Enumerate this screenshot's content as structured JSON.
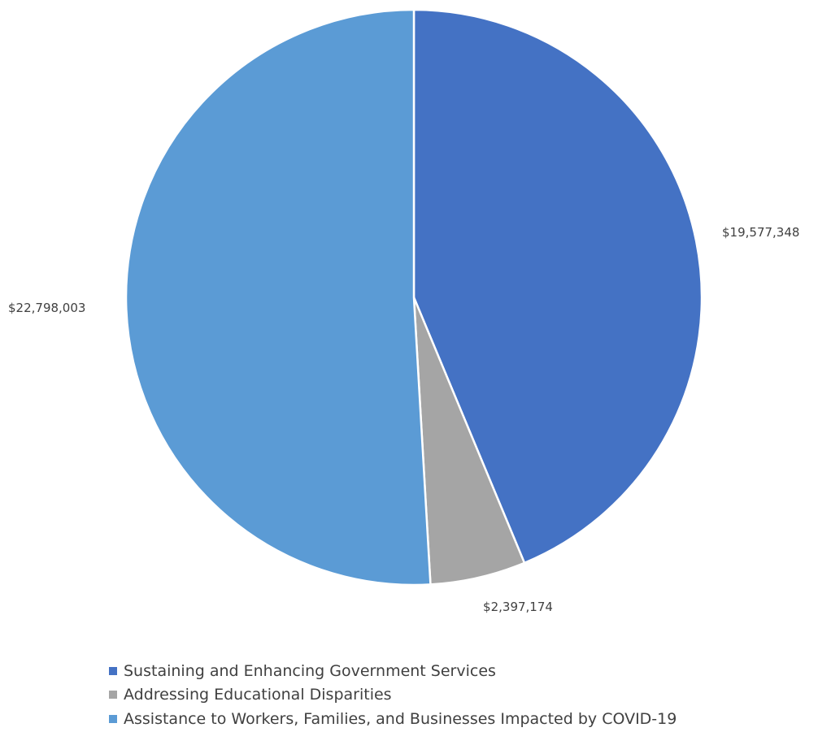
{
  "chart_data": {
    "type": "pie",
    "title": "",
    "categories": [
      "Sustaining and Enhancing Government Services",
      "Addressing Educational Disparities",
      "Assistance to Workers, Families, and Businesses Impacted by COVID-19"
    ],
    "values": [
      19577348,
      2397174,
      22798003
    ],
    "labels": [
      "$19,577,348",
      "$2,397,174",
      "$22,798,003"
    ],
    "colors": [
      "#4472C4",
      "#A5A5A5",
      "#5B9BD5"
    ],
    "start_angle_deg": 0,
    "direction": "clockwise",
    "legend_position": "bottom"
  },
  "legend": {
    "items": [
      {
        "label": "Sustaining and Enhancing Government Services",
        "color": "#4472C4"
      },
      {
        "label": "Addressing Educational Disparities",
        "color": "#A5A5A5"
      },
      {
        "label": "Assistance to Workers, Families, and Businesses Impacted by COVID-19",
        "color": "#5B9BD5"
      }
    ]
  }
}
